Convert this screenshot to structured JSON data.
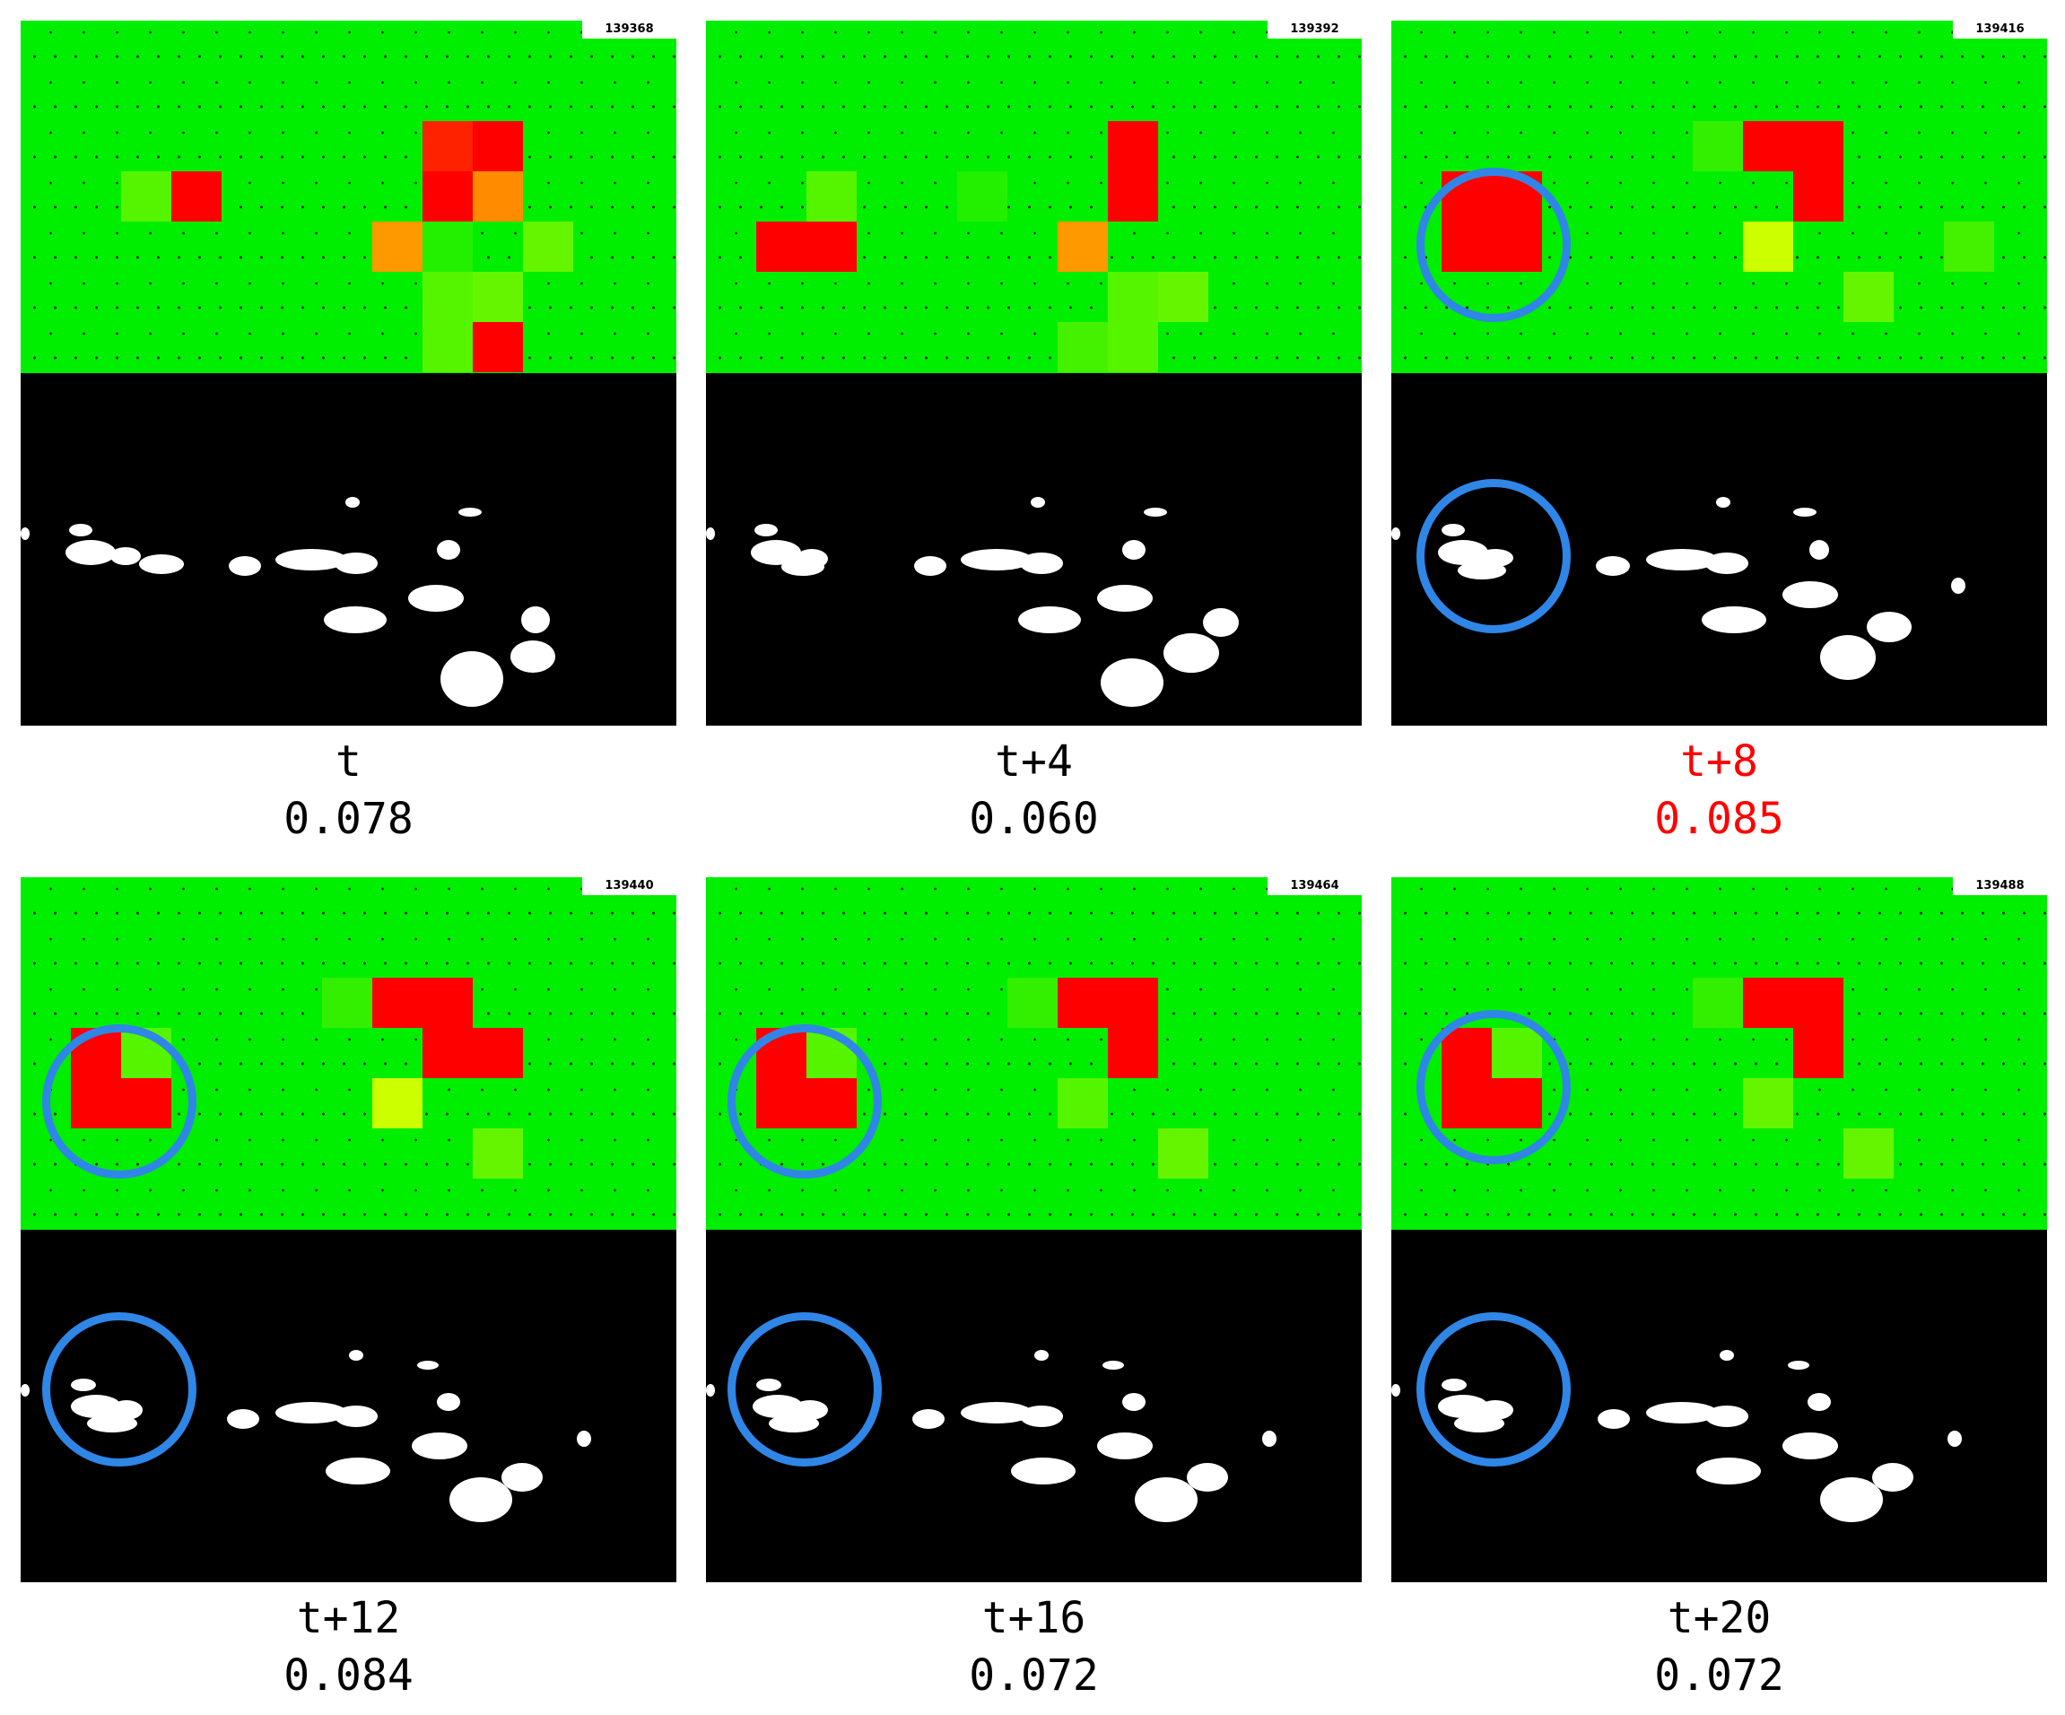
{
  "panels": [
    {
      "frame_id": "139368",
      "time_label": "t",
      "score": "0.078",
      "highlighted": false,
      "marked": false
    },
    {
      "frame_id": "139392",
      "time_label": "t+4",
      "score": "0.060",
      "highlighted": false,
      "marked": false
    },
    {
      "frame_id": "139416",
      "time_label": "t+8",
      "score": "0.085",
      "highlighted": true,
      "marked": true
    },
    {
      "frame_id": "139440",
      "time_label": "t+12",
      "score": "0.084",
      "highlighted": false,
      "marked": true
    },
    {
      "frame_id": "139464",
      "time_label": "t+16",
      "score": "0.072",
      "highlighted": false,
      "marked": true
    },
    {
      "frame_id": "139488",
      "time_label": "t+20",
      "score": "0.072",
      "highlighted": false,
      "marked": true
    }
  ],
  "colors": {
    "background_green": "#00ee00",
    "anomaly_red": "#ff0000",
    "medium_orange": "#ff8c00",
    "low_lime": "#66ff00",
    "marker_blue": "#2f86e6",
    "highlight_text": "#ff0000"
  }
}
